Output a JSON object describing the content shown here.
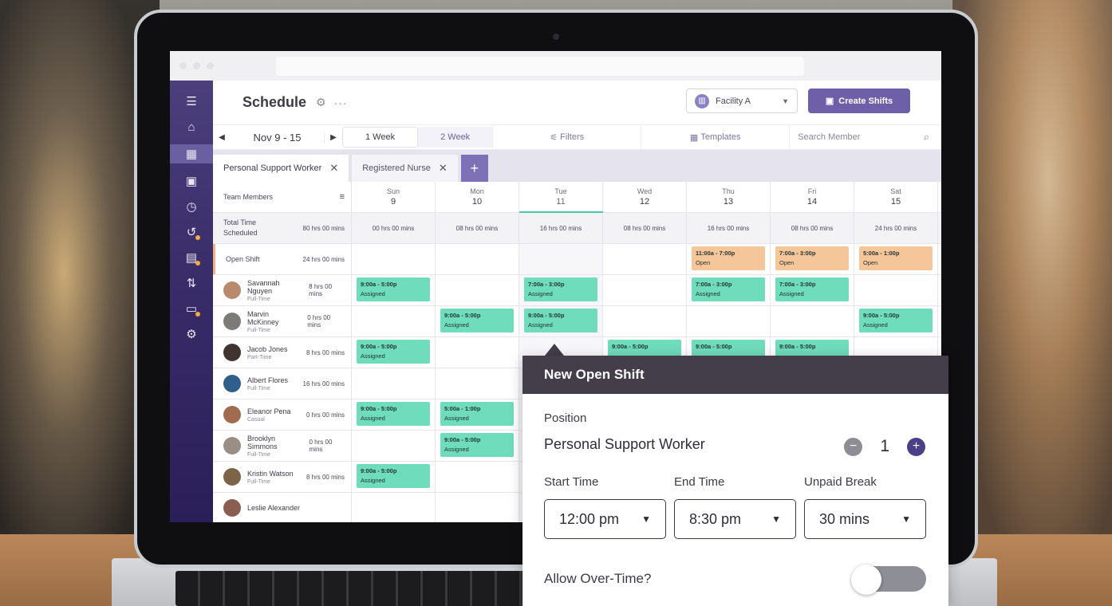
{
  "header": {
    "title": "Schedule",
    "facility": "Facility A",
    "create_button": "Create Shifts"
  },
  "toolbar": {
    "date_range": "Nov 9 - 15",
    "week1": "1 Week",
    "week2": "2 Week",
    "filters": "Filters",
    "templates": "Templates",
    "search_placeholder": "Search Member"
  },
  "tabs": [
    {
      "label": "Personal Support Worker"
    },
    {
      "label": "Registered Nurse"
    }
  ],
  "grid": {
    "members_header": "Team Members",
    "days": [
      {
        "day": "Sun",
        "date": "9"
      },
      {
        "day": "Mon",
        "date": "10"
      },
      {
        "day": "Tue",
        "date": "11"
      },
      {
        "day": "Wed",
        "date": "12"
      },
      {
        "day": "Thu",
        "date": "13"
      },
      {
        "day": "Fri",
        "date": "14"
      },
      {
        "day": "Sat",
        "date": "15"
      }
    ],
    "total": {
      "label": "Total Time Scheduled",
      "hours": "80 hrs 00 mins",
      "per_day": [
        "00 hrs 00 mins",
        "08 hrs 00 mins",
        "16 hrs 00 mins",
        "08 hrs 00 mins",
        "16 hrs 00 mins",
        "08 hrs 00 mins",
        "24 hrs 00 mins"
      ]
    },
    "open_shift": {
      "label": "Open Shift",
      "hours": "24 hrs 00 mins",
      "thu": {
        "time": "11:00a - 7:00p",
        "status": "Open"
      },
      "fri": {
        "time": "7:00a - 3:00p",
        "status": "Open"
      },
      "sat": {
        "time": "5:00a - 1:00p",
        "status": "Open"
      }
    },
    "members": [
      {
        "name": "Savannah Nguyen",
        "type": "Full-Time",
        "hours": "8 hrs 00 mins",
        "sun": {
          "time": "9:00a - 5:00p",
          "status": "Assigned"
        },
        "tue": {
          "time": "7:00a - 3:00p",
          "status": "Assigned"
        },
        "thu": {
          "time": "7:00a - 3:00p",
          "status": "Assigned"
        },
        "fri": {
          "time": "7:00a - 3:00p",
          "status": "Assigned"
        }
      },
      {
        "name": "Marvin McKinney",
        "type": "Full-Time",
        "hours": "0 hrs 00 mins",
        "mon": {
          "time": "9:00a - 5:00p",
          "status": "Assigned"
        },
        "tue": {
          "time": "9:00a - 5:00p",
          "status": "Assigned"
        },
        "sat": {
          "time": "9:00a - 5:00p",
          "status": "Assigned"
        }
      },
      {
        "name": "Jacob Jones",
        "type": "Part-Time",
        "hours": "8 hrs 00 mins",
        "sun": {
          "time": "9:00a - 5:00p",
          "status": "Assigned"
        },
        "wed": {
          "time": "9:00a - 5:00p"
        },
        "thu": {
          "time": "9:00a - 5:00p"
        },
        "fri": {
          "time": "9:00a - 5:00p"
        }
      },
      {
        "name": "Albert Flores",
        "type": "Full-Time",
        "hours": "16 hrs 00 mins"
      },
      {
        "name": "Eleanor Pena",
        "type": "Casual",
        "hours": "0 hrs 00 mins",
        "sun": {
          "time": "9:00a - 5:00p",
          "status": "Assigned"
        },
        "mon": {
          "time": "5:00a - 1:00p",
          "status": "Assigned"
        }
      },
      {
        "name": "Brooklyn Simmons",
        "type": "Full-Time",
        "hours": "0 hrs 00 mins",
        "mon": {
          "time": "9:00a - 5:00p",
          "status": "Assigned"
        }
      },
      {
        "name": "Kristin Watson",
        "type": "Full-Time",
        "hours": "8 hrs 00 mins",
        "sun": {
          "time": "9:00a - 5:00p",
          "status": "Assigned"
        }
      },
      {
        "name": "Leslie Alexander"
      }
    ]
  },
  "popup": {
    "title": "New Open Shift",
    "position_label": "Position",
    "position_value": "Personal Support Worker",
    "quantity": "1",
    "start_label": "Start Time",
    "start_value": "12:00 pm",
    "end_label": "End Time",
    "end_value": "8:30 pm",
    "break_label": "Unpaid Break",
    "break_value": "30 mins",
    "overtime_label": "Allow Over-Time?"
  },
  "colors": {
    "sidebar": "#3a2e6b",
    "accent": "#6e60a8",
    "assigned": "#6fdcbc",
    "open": "#f6c69b",
    "popup_header": "#433e4a"
  }
}
